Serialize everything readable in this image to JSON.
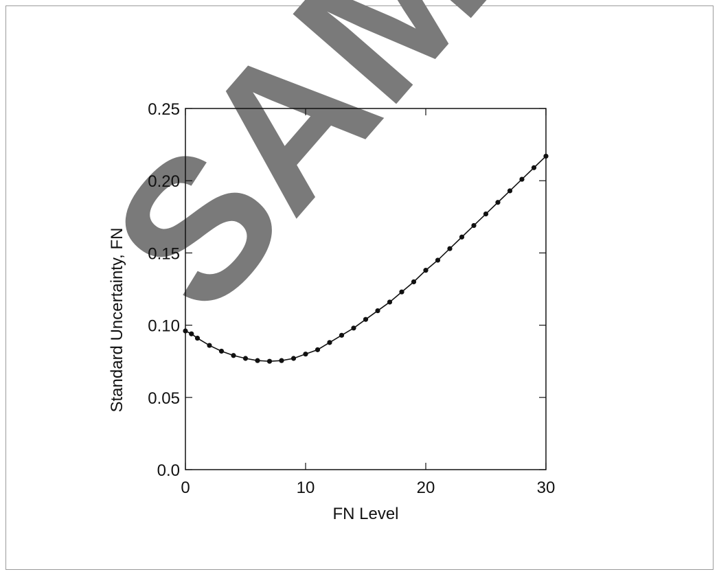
{
  "chart_data": {
    "type": "scatter",
    "xlabel": "FN Level",
    "ylabel": "Standard Uncertainty, FN",
    "xlim": [
      0,
      30
    ],
    "ylim": [
      0.0,
      0.25
    ],
    "xticks": [
      0,
      10,
      20,
      30
    ],
    "xtick_labels": [
      "0",
      "10",
      "20",
      "30"
    ],
    "yticks": [
      0.0,
      0.05,
      0.1,
      0.15,
      0.2,
      0.25
    ],
    "ytick_labels": [
      "0.0",
      "0.05",
      "0.10",
      "0.15",
      "0.20",
      "0.25"
    ],
    "grid": false,
    "legend": "none",
    "series": [
      {
        "kind": "points",
        "x": [
          0,
          0.5,
          1,
          2,
          3,
          4,
          5,
          6,
          7,
          8,
          9,
          10,
          11,
          12,
          13,
          14,
          15,
          16,
          17,
          18,
          19,
          20,
          21,
          22,
          23,
          24,
          25,
          26,
          27,
          28,
          29,
          30
        ],
        "y": [
          0.096,
          0.094,
          0.091,
          0.086,
          0.082,
          0.079,
          0.077,
          0.0755,
          0.075,
          0.0755,
          0.077,
          0.08,
          0.083,
          0.088,
          0.093,
          0.098,
          0.104,
          0.11,
          0.116,
          0.123,
          0.13,
          0.138,
          0.145,
          0.153,
          0.161,
          0.169,
          0.177,
          0.185,
          0.193,
          0.201,
          0.209,
          0.217
        ]
      },
      {
        "kind": "fit-line",
        "x": [
          0,
          0.5,
          1,
          2,
          3,
          4,
          5,
          6,
          7,
          8,
          9,
          10,
          11,
          12,
          13,
          14,
          15,
          16,
          17,
          18,
          19,
          20,
          21,
          22,
          23,
          24,
          25,
          26,
          27,
          28,
          29,
          30
        ],
        "y": [
          0.096,
          0.094,
          0.091,
          0.086,
          0.082,
          0.079,
          0.077,
          0.0755,
          0.075,
          0.0755,
          0.077,
          0.08,
          0.083,
          0.088,
          0.093,
          0.098,
          0.104,
          0.11,
          0.116,
          0.123,
          0.13,
          0.138,
          0.145,
          0.153,
          0.161,
          0.169,
          0.177,
          0.185,
          0.193,
          0.201,
          0.209,
          0.217
        ]
      }
    ]
  },
  "watermark": {
    "text": "SAMPLE",
    "color": "#7a7a7a"
  },
  "colors": {
    "marker": "#111111",
    "line": "#111111",
    "axes": "#111111",
    "frame": "#9a9a9a"
  }
}
